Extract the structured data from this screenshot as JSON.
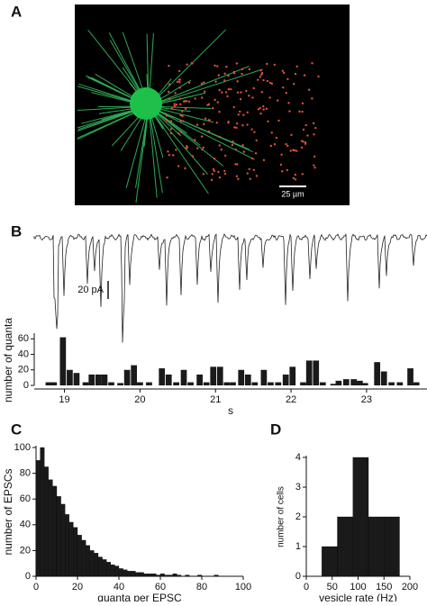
{
  "image_panel": {
    "label": "A",
    "scale_bar": "25 µm"
  },
  "trace_panel": {
    "label": "B",
    "scale_bar": "20 pA"
  },
  "chart_data": [
    {
      "type": "bar",
      "ylabel": "number of quanta",
      "xlabel": "s",
      "color": "#1a1a1a",
      "x": [
        18.79,
        18.86,
        18.98,
        19.07,
        19.16,
        19.28,
        19.36,
        19.45,
        19.53,
        19.62,
        19.74,
        19.83,
        19.92,
        20.0,
        20.12,
        20.29,
        20.38,
        20.48,
        20.58,
        20.67,
        20.79,
        20.88,
        20.97,
        21.06,
        21.15,
        21.23,
        21.34,
        21.43,
        21.52,
        21.64,
        21.73,
        21.83,
        21.93,
        22.02,
        22.16,
        22.24,
        22.33,
        22.42,
        22.56,
        22.63,
        22.73,
        22.83,
        22.91,
        22.98,
        23.14,
        23.23,
        23.33,
        23.44,
        23.58,
        23.66
      ],
      "values": [
        4,
        4,
        62,
        20,
        16,
        4,
        14,
        14,
        14,
        4,
        3,
        20,
        26,
        4,
        4,
        22,
        14,
        4,
        20,
        4,
        14,
        4,
        24,
        24,
        4,
        4,
        20,
        14,
        4,
        20,
        4,
        4,
        14,
        24,
        4,
        32,
        32,
        4,
        2,
        6,
        8,
        8,
        6,
        3,
        30,
        18,
        4,
        4,
        22,
        4
      ],
      "xlim": [
        18.6,
        23.8
      ],
      "xticks": [
        19,
        20,
        21,
        22,
        23
      ],
      "ylim": [
        0,
        65
      ],
      "yticks": [
        0,
        20,
        40,
        60
      ]
    },
    {
      "type": "histogram",
      "panel": "C",
      "ylabel": "number of EPSCs",
      "xlabel": "quanta per EPSC",
      "color": "#1a1a1a",
      "bins": [
        0,
        2,
        4,
        6,
        8,
        10,
        12,
        14,
        16,
        18,
        20,
        22,
        24,
        26,
        28,
        30,
        32,
        34,
        36,
        38,
        40,
        42,
        44,
        46,
        48,
        50,
        52,
        54,
        56,
        58,
        60,
        62,
        64,
        66,
        68,
        70,
        72,
        74,
        76,
        78,
        80,
        82,
        84,
        86,
        88,
        90,
        92,
        94,
        96,
        98,
        100
      ],
      "values": [
        90,
        100,
        85,
        75,
        70,
        62,
        56,
        48,
        42,
        38,
        32,
        28,
        24,
        20,
        18,
        15,
        13,
        11,
        9,
        8,
        6,
        5,
        4,
        4,
        3,
        3,
        2,
        2,
        2,
        1,
        2,
        1,
        1,
        2,
        1,
        0,
        1,
        0,
        0,
        1,
        0,
        0,
        0,
        1,
        0,
        0,
        0,
        0,
        0,
        0
      ],
      "xlim": [
        0,
        100
      ],
      "xticks": [
        0,
        20,
        40,
        60,
        80,
        100
      ],
      "ylim": [
        0,
        100
      ],
      "yticks": [
        0,
        20,
        40,
        60,
        80,
        100
      ]
    },
    {
      "type": "histogram",
      "panel": "D",
      "ylabel": "number of cells",
      "xlabel": "vesicle rate (Hz)",
      "color": "#1a1a1a",
      "bins": [
        30,
        60,
        90,
        120,
        150,
        180
      ],
      "values": [
        1,
        2,
        4,
        2,
        2
      ],
      "xlim": [
        0,
        200
      ],
      "xticks": [
        0,
        50,
        100,
        150,
        200
      ],
      "ylim": [
        0,
        4
      ],
      "yticks": [
        0,
        1,
        2,
        3,
        4
      ]
    }
  ]
}
